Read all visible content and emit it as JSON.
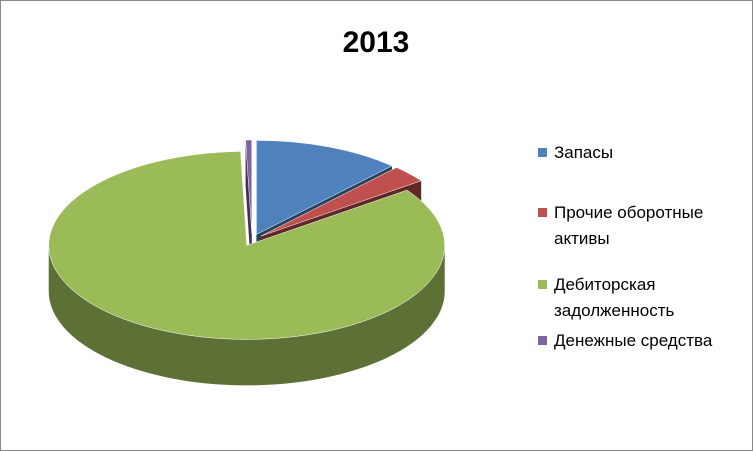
{
  "chart_data": {
    "type": "pie",
    "title": "2013",
    "categories": [
      "Запасы",
      "Прочие оборотные активы",
      "Дебиторская задолженность",
      "Денежные средства"
    ],
    "values": [
      12,
      3,
      84.5,
      0.5
    ],
    "colors": [
      "#4f81bd",
      "#c0504d",
      "#9bbb59",
      "#8064a2"
    ],
    "legend": "right"
  }
}
